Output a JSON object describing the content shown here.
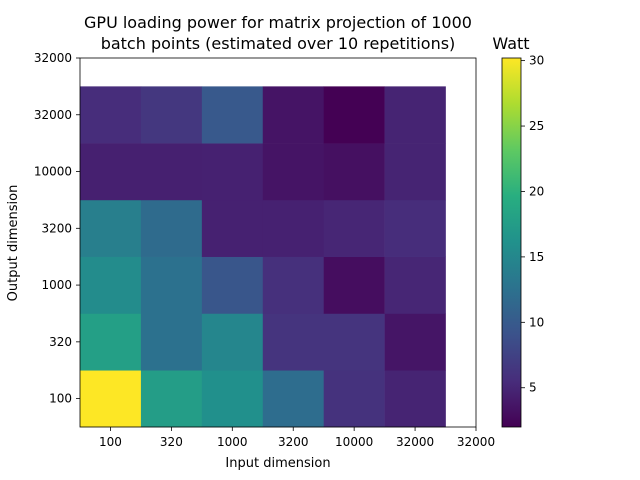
{
  "chart_data": {
    "type": "heatmap",
    "title_line1": "GPU loading power for matrix projection of 1000",
    "title_line2": "batch points (estimated over 10 repetitions)",
    "xlabel": "Input dimension",
    "ylabel": "Output dimension",
    "x_ticks": [
      "100",
      "320",
      "1000",
      "3200",
      "10000",
      "32000",
      "32000"
    ],
    "y_ticks": [
      "100",
      "320",
      "1000",
      "3200",
      "10000",
      "32000",
      "32000"
    ],
    "x_categories": [
      "100",
      "320",
      "1000",
      "3200",
      "10000",
      "32000"
    ],
    "y_categories": [
      "100",
      "320",
      "1000",
      "3200",
      "10000",
      "32000"
    ],
    "values": [
      [
        30.2,
        17.5,
        16.0,
        12.0,
        6.0,
        4.8
      ],
      [
        17.8,
        12.5,
        14.8,
        6.2,
        6.2,
        3.6
      ],
      [
        15.5,
        12.5,
        9.5,
        5.8,
        3.0,
        5.0
      ],
      [
        14.0,
        11.8,
        4.6,
        4.6,
        5.0,
        5.5
      ],
      [
        4.5,
        4.5,
        4.6,
        3.5,
        3.2,
        4.8
      ],
      [
        5.5,
        6.5,
        9.8,
        3.5,
        2.0,
        4.8
      ]
    ],
    "colorbar": {
      "label": "Watt",
      "ticks": [
        "5",
        "10",
        "15",
        "20",
        "25",
        "30"
      ],
      "tick_values": [
        5,
        10,
        15,
        20,
        25,
        30
      ],
      "range": [
        2.0,
        30.2
      ],
      "colormap": "viridis"
    }
  }
}
